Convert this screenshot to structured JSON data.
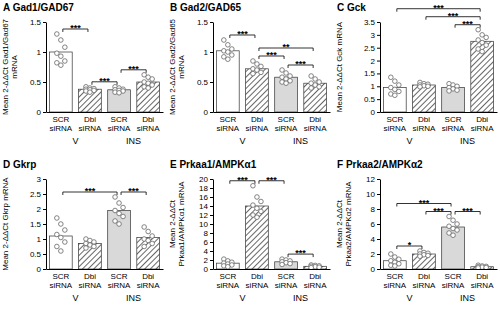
{
  "chart_data": [
    {
      "type": "bar",
      "title": "A Gad1/GAD67",
      "y_label": [
        "Mean 2-ΔΔCt Gad1/Gad67",
        "mRNA"
      ],
      "categories": [
        "SCR siRNA",
        "Dbi siRNA",
        "SCR siRNA",
        "Dbi siRNA"
      ],
      "groups": [
        "V",
        "INS"
      ],
      "values": [
        1.0,
        0.38,
        0.37,
        0.5
      ],
      "points": [
        [
          1.3,
          1.2,
          1.08,
          0.98,
          0.93,
          0.85,
          0.82,
          0.78
        ],
        [
          0.42,
          0.4,
          0.39,
          0.38,
          0.37,
          0.36,
          0.35,
          0.33
        ],
        [
          0.42,
          0.4,
          0.38,
          0.37,
          0.36,
          0.35,
          0.33,
          0.32
        ],
        [
          0.62,
          0.58,
          0.55,
          0.5,
          0.48,
          0.45,
          0.42,
          0.4
        ]
      ],
      "colors": [
        "#ffffff",
        "#404040",
        "#d9d9d9",
        "#404040"
      ],
      "ylim": [
        0,
        1.5
      ],
      "yticks": [
        0,
        0.5,
        1,
        1.5
      ],
      "grid": false,
      "significance": [
        {
          "pair": [
            0,
            1
          ],
          "label": "***"
        },
        {
          "pair": [
            1,
            2
          ],
          "label": "***"
        },
        {
          "pair": [
            2,
            3
          ],
          "label": "***"
        }
      ]
    },
    {
      "type": "bar",
      "title": "B Gad2/GAD65",
      "y_label": [
        "Mean 2-ΔΔCt Gad2/Gad65",
        "mRNA"
      ],
      "categories": [
        "SCR siRNA",
        "Dbi siRNA",
        "SCR siRNA",
        "Dbi siRNA"
      ],
      "groups": [
        "V",
        "INS"
      ],
      "values": [
        1.02,
        0.72,
        0.58,
        0.48
      ],
      "points": [
        [
          1.2,
          1.12,
          1.05,
          1.02,
          1.0,
          0.95,
          0.92,
          0.88
        ],
        [
          0.85,
          0.8,
          0.76,
          0.72,
          0.7,
          0.66,
          0.64
        ],
        [
          0.7,
          0.65,
          0.6,
          0.58,
          0.55,
          0.52,
          0.5,
          0.48
        ],
        [
          0.6,
          0.55,
          0.5,
          0.48,
          0.45,
          0.42,
          0.4
        ]
      ],
      "colors": [
        "#ffffff",
        "#404040",
        "#d9d9d9",
        "#404040"
      ],
      "ylim": [
        0,
        1.5
      ],
      "yticks": [
        0,
        0.5,
        1,
        1.5
      ],
      "grid": false,
      "significance": [
        {
          "pair": [
            0,
            1
          ],
          "label": "***"
        },
        {
          "pair": [
            1,
            2
          ],
          "label": "***"
        },
        {
          "pair": [
            2,
            3
          ],
          "label": "***"
        },
        {
          "pair": [
            1,
            3
          ],
          "label": "**"
        }
      ]
    },
    {
      "type": "bar",
      "title": "C Gck",
      "y_label": [
        "Mean 2-ΔΔCt Gck mRNA"
      ],
      "categories": [
        "SCR siRNA",
        "Dbi siRNA",
        "SCR siRNA",
        "Dbi siRNA"
      ],
      "groups": [
        "V",
        "INS"
      ],
      "values": [
        0.95,
        1.05,
        0.95,
        2.75
      ],
      "points": [
        [
          1.35,
          1.2,
          1.05,
          0.95,
          0.88,
          0.8,
          0.7,
          0.65
        ],
        [
          1.15,
          1.1,
          1.08,
          1.05,
          1.02,
          1.0,
          0.98
        ],
        [
          1.1,
          1.05,
          1.0,
          0.95,
          0.9,
          0.85,
          0.82
        ],
        [
          3.2,
          3.0,
          2.9,
          2.8,
          2.7,
          2.6,
          2.45,
          2.35
        ]
      ],
      "colors": [
        "#ffffff",
        "#404040",
        "#d9d9d9",
        "#404040"
      ],
      "ylim": [
        0,
        3.5
      ],
      "yticks": [
        0,
        0.5,
        1,
        1.5,
        2,
        2.5,
        3,
        3.5
      ],
      "grid": false,
      "significance": [
        {
          "pair": [
            2,
            3
          ],
          "label": "***"
        },
        {
          "pair": [
            1,
            3
          ],
          "label": "***"
        },
        {
          "pair": [
            0,
            3
          ],
          "label": "***"
        }
      ]
    },
    {
      "type": "bar",
      "title": "D Gkrp",
      "y_label": [
        "Mean 2-ΔΔCt Gkrp mRNA"
      ],
      "categories": [
        "SCR siRNA",
        "Dbi siRNA",
        "SCR siRNA",
        "Dbi siRNA"
      ],
      "groups": [
        "V",
        "INS"
      ],
      "values": [
        1.1,
        0.85,
        1.95,
        1.05
      ],
      "points": [
        [
          1.7,
          1.5,
          1.3,
          1.15,
          1.05,
          0.9,
          0.75,
          0.6
        ],
        [
          1.0,
          0.95,
          0.9,
          0.85,
          0.8,
          0.75,
          0.7
        ],
        [
          2.4,
          2.2,
          2.05,
          1.95,
          1.85,
          1.75,
          1.6,
          1.5
        ],
        [
          1.4,
          1.25,
          1.1,
          1.0,
          0.95,
          0.85,
          0.75
        ]
      ],
      "colors": [
        "#ffffff",
        "#404040",
        "#d9d9d9",
        "#404040"
      ],
      "ylim": [
        0,
        3
      ],
      "yticks": [
        0,
        0.5,
        1,
        1.5,
        2,
        2.5,
        3
      ],
      "grid": false,
      "significance": [
        {
          "pair": [
            0,
            2
          ],
          "label": "***"
        },
        {
          "pair": [
            2,
            3
          ],
          "label": "***"
        }
      ]
    },
    {
      "type": "bar",
      "title": "E Prkaa1/AMPKα1",
      "y_label": [
        "Mean 2-ΔΔCt",
        "Prkaa1/AMPKα1 mRNA"
      ],
      "categories": [
        "SCR siRNA",
        "Dbi siRNA",
        "SCR siRNA",
        "Dbi siRNA"
      ],
      "groups": [
        "V",
        "INS"
      ],
      "values": [
        1.3,
        14.0,
        1.6,
        0.6
      ],
      "points": [
        [
          2.2,
          1.8,
          1.5,
          1.3,
          1.1,
          0.9,
          0.7,
          0.5
        ],
        [
          18.5,
          16.0,
          15.0,
          14.2,
          13.5,
          12.8,
          12.0,
          11.5
        ],
        [
          2.2,
          2.0,
          1.8,
          1.6,
          1.4,
          1.2,
          1.0
        ],
        [
          0.9,
          0.8,
          0.7,
          0.6,
          0.5,
          0.4,
          0.3
        ]
      ],
      "colors": [
        "#ffffff",
        "#404040",
        "#d9d9d9",
        "#404040"
      ],
      "ylim": [
        0,
        20
      ],
      "yticks": [
        0,
        2,
        4,
        6,
        8,
        10,
        12,
        14,
        16,
        18,
        20
      ],
      "grid": false,
      "significance": [
        {
          "pair": [
            0,
            1
          ],
          "label": "***"
        },
        {
          "pair": [
            1,
            2
          ],
          "label": "***"
        },
        {
          "pair": [
            2,
            3
          ],
          "label": "***"
        }
      ]
    },
    {
      "type": "bar",
      "title": "F Prkaa2/AMPKα2",
      "y_label": [
        "Mean 2-ΔΔCt",
        "Prkaa2/AMPKα2 mRNA"
      ],
      "categories": [
        "SCR siRNA",
        "Dbi siRNA",
        "SCR siRNA",
        "Dbi siRNA"
      ],
      "groups": [
        "V",
        "INS"
      ],
      "values": [
        1.1,
        2.0,
        5.6,
        0.3
      ],
      "points": [
        [
          2.0,
          1.6,
          1.3,
          1.1,
          0.9,
          0.7,
          0.5,
          0.4
        ],
        [
          2.4,
          2.2,
          2.1,
          2.0,
          1.9,
          1.8,
          1.7
        ],
        [
          7.0,
          6.5,
          6.0,
          5.7,
          5.4,
          5.2,
          4.8,
          4.5
        ],
        [
          0.5,
          0.4,
          0.35,
          0.3,
          0.25,
          0.2,
          0.15
        ]
      ],
      "colors": [
        "#ffffff",
        "#404040",
        "#d9d9d9",
        "#404040"
      ],
      "ylim": [
        0,
        12
      ],
      "yticks": [
        0,
        2,
        4,
        6,
        8,
        10,
        12
      ],
      "grid": false,
      "significance": [
        {
          "pair": [
            0,
            1
          ],
          "label": "*"
        },
        {
          "pair": [
            2,
            3
          ],
          "label": "***"
        },
        {
          "pair": [
            1,
            2
          ],
          "label": "***"
        },
        {
          "pair": [
            0,
            2
          ],
          "label": "***"
        }
      ]
    }
  ]
}
